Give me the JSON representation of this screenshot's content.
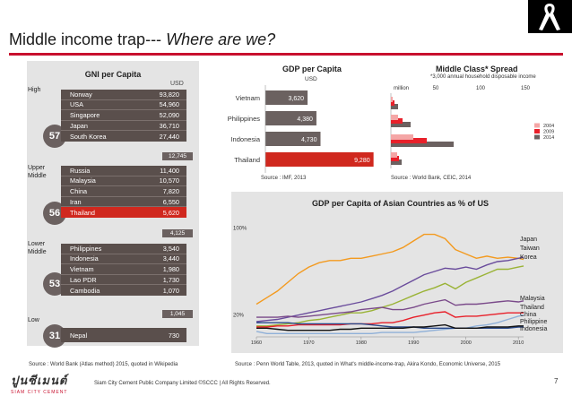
{
  "page": {
    "title_main": "Middle income trap---",
    "title_italic": "Where are we?",
    "page_number": "7",
    "footer": "Siam City Cement Public Company Limited  ©SCCC | All Rights Reserved.",
    "logo_text": "ปูนซีเมนต์",
    "logo_sub": "SIAM CITY CEMENT",
    "accent_color": "#c8102e"
  },
  "gni": {
    "title": "GNI per Capita",
    "unit": "USD",
    "source": "Source :  World Bank (Atlas method) 2015, quoted in Wikipedia",
    "thresholds": [
      "12,745",
      "4,125",
      "1,045"
    ],
    "groups": [
      {
        "category": "High",
        "count": "57",
        "rows": [
          {
            "country": "Norway",
            "value": "93,820"
          },
          {
            "country": "USA",
            "value": "54,960"
          },
          {
            "country": "Singapore",
            "value": "52,090"
          },
          {
            "country": "Japan",
            "value": "36,710"
          },
          {
            "country": "South Korea",
            "value": "27,440"
          }
        ]
      },
      {
        "category": "Upper Middle",
        "count": "56",
        "rows": [
          {
            "country": "Russia",
            "value": "11,400"
          },
          {
            "country": "Malaysia",
            "value": "10,570"
          },
          {
            "country": "China",
            "value": "7,820"
          },
          {
            "country": "Iran",
            "value": "6,550"
          },
          {
            "country": "Thailand",
            "value": "5,620",
            "highlight": true
          }
        ]
      },
      {
        "category": "Lower Middle",
        "count": "53",
        "rows": [
          {
            "country": "Philippines",
            "value": "3,540"
          },
          {
            "country": "Indonesia",
            "value": "3,440"
          },
          {
            "country": "Vietnam",
            "value": "1,980"
          },
          {
            "country": "Lao PDR",
            "value": "1,730"
          },
          {
            "country": "Cambodia",
            "value": "1,070"
          }
        ]
      },
      {
        "category": "Low",
        "count": "31",
        "rows": [
          {
            "country": "Nepal",
            "value": "730"
          }
        ]
      }
    ]
  },
  "chart_data": [
    {
      "type": "bar",
      "title": "GDP per Capita",
      "ylabel": "USD",
      "categories": [
        "Vietnam",
        "Philippines",
        "Indonesia",
        "Thailand"
      ],
      "values": [
        3620,
        4380,
        4730,
        9280
      ],
      "value_labels": [
        "3,620",
        "4,380",
        "4,730",
        "9,280"
      ],
      "colors": [
        "#6b6160",
        "#6b6160",
        "#6b6160",
        "#d0281e"
      ],
      "xlim": [
        0,
        10000
      ],
      "source": "Source :  IMF, 2013"
    },
    {
      "type": "bar",
      "title": "Middle Class* Spread",
      "note": "*3,000 annual household disposable income",
      "xlabel": "million",
      "ticks": [
        "50",
        "100",
        "150"
      ],
      "tick_values": [
        50,
        100,
        150
      ],
      "xlim": [
        0,
        170
      ],
      "categories": [
        "Vietnam",
        "Philippines",
        "Indonesia",
        "Thailand"
      ],
      "series": [
        {
          "name": "2004",
          "color": "#f4a6a6",
          "values": [
            2,
            8,
            25,
            7
          ]
        },
        {
          "name": "2009",
          "color": "#e8202a",
          "values": [
            4,
            13,
            40,
            9
          ]
        },
        {
          "name": "2014",
          "color": "#6b6160",
          "values": [
            8,
            22,
            70,
            12
          ]
        }
      ],
      "legend": [
        "2004",
        "2009",
        "2014"
      ],
      "source": "Source :  World Bank, CEIC, 2014"
    },
    {
      "type": "line",
      "title": "GDP per Capita of Asian Countries as % of US",
      "yticks": [
        "100%",
        "20%"
      ],
      "ytick_values": [
        100,
        20
      ],
      "ylim": [
        0,
        115
      ],
      "xticks": [
        "1960",
        "1970",
        "1980",
        "1990",
        "2000",
        "2010"
      ],
      "xlim": [
        1960,
        2011
      ],
      "x": [
        1960,
        1962,
        1964,
        1966,
        1968,
        1970,
        1972,
        1974,
        1976,
        1978,
        1980,
        1982,
        1984,
        1986,
        1988,
        1990,
        1992,
        1994,
        1996,
        1998,
        2000,
        2002,
        2004,
        2006,
        2008,
        2010,
        2011
      ],
      "series": [
        {
          "name": "Japan",
          "color": "#f39a1f",
          "values": [
            30,
            36,
            42,
            50,
            58,
            64,
            68,
            70,
            70,
            72,
            72,
            74,
            76,
            78,
            82,
            88,
            94,
            94,
            90,
            80,
            76,
            72,
            74,
            72,
            73,
            72,
            71
          ]
        },
        {
          "name": "Taiwan",
          "color": "#6a4c9c",
          "values": [
            14,
            15,
            16,
            18,
            20,
            22,
            24,
            26,
            28,
            30,
            32,
            35,
            38,
            42,
            47,
            52,
            57,
            60,
            63,
            62,
            64,
            62,
            66,
            69,
            70,
            72,
            73
          ]
        },
        {
          "name": "Korea",
          "color": "#9ab336",
          "values": [
            10,
            10,
            11,
            12,
            13,
            15,
            16,
            18,
            20,
            22,
            22,
            24,
            27,
            30,
            34,
            38,
            42,
            45,
            49,
            44,
            50,
            54,
            58,
            62,
            62,
            64,
            65
          ]
        },
        {
          "name": "Malaysia",
          "color": "#7a4a8a",
          "values": [
            18,
            18,
            18,
            19,
            18,
            19,
            20,
            21,
            22,
            23,
            25,
            26,
            27,
            25,
            25,
            27,
            30,
            32,
            34,
            29,
            30,
            30,
            31,
            32,
            33,
            32,
            33
          ]
        },
        {
          "name": "Thailand",
          "color": "#e8202a",
          "values": [
            9,
            9,
            10,
            10,
            11,
            11,
            11,
            11,
            11,
            12,
            12,
            12,
            13,
            13,
            15,
            18,
            20,
            22,
            23,
            18,
            19,
            19,
            20,
            21,
            22,
            22,
            22
          ]
        },
        {
          "name": "China",
          "color": "#8fb0d8",
          "values": [
            5,
            3,
            3,
            3,
            3,
            3,
            3,
            3,
            3,
            3,
            3,
            3,
            4,
            4,
            4,
            4,
            5,
            6,
            7,
            8,
            8,
            10,
            11,
            13,
            16,
            19,
            20
          ]
        },
        {
          "name": "Philippine",
          "color": "#2b4a8a",
          "values": [
            13,
            13,
            13,
            13,
            12,
            12,
            12,
            12,
            12,
            12,
            12,
            11,
            10,
            9,
            9,
            9,
            8,
            8,
            8,
            8,
            8,
            8,
            8,
            8,
            8,
            9,
            9
          ]
        },
        {
          "name": "Indonesia",
          "color": "#111111",
          "values": [
            8,
            8,
            7,
            6,
            6,
            6,
            6,
            6,
            7,
            7,
            8,
            8,
            8,
            8,
            8,
            9,
            9,
            10,
            11,
            8,
            8,
            8,
            9,
            9,
            9,
            10,
            10
          ]
        }
      ],
      "labels": [
        "Japan",
        "Taiwan",
        "Korea",
        "Malaysia",
        "Thailand",
        "China",
        "Philippine",
        "Indonesia"
      ],
      "source": "Source :  Penn World Table, 2013,  quoted in What's middle-income-trap, Akira Kondo, Economic Universe, 2015"
    }
  ]
}
